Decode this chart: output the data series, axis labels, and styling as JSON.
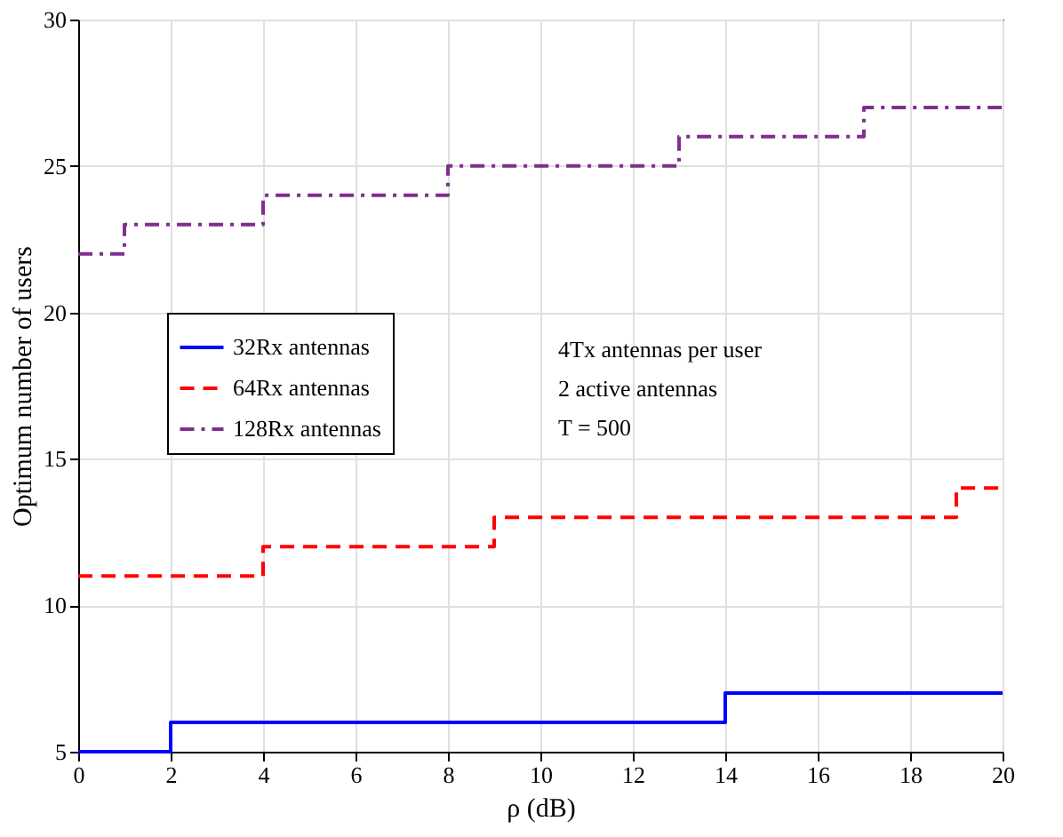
{
  "chart_data": {
    "type": "step",
    "xlabel": "ρ (dB)",
    "ylabel": "Optimum number of users",
    "xlim": [
      0,
      20
    ],
    "ylim": [
      5,
      30
    ],
    "xticks": [
      0,
      2,
      4,
      6,
      8,
      10,
      12,
      14,
      16,
      18,
      20
    ],
    "yticks": [
      5,
      10,
      15,
      20,
      25,
      30
    ],
    "grid": true,
    "legend": "left",
    "series": [
      {
        "name": "32Rx antennas",
        "color": "#0000ff",
        "line_style": "solid",
        "x": [
          0,
          2,
          14,
          20
        ],
        "values": [
          5,
          6,
          7,
          7
        ]
      },
      {
        "name": "64Rx antennas",
        "color": "#ff0000",
        "line_style": "dashed",
        "x": [
          0,
          4,
          9,
          19,
          20
        ],
        "values": [
          11,
          12,
          13,
          14,
          14
        ]
      },
      {
        "name": "128Rx antennas",
        "color": "#7e2f8e",
        "line_style": "dashdot",
        "x": [
          0,
          1,
          4,
          8,
          13,
          17,
          20
        ],
        "values": [
          22,
          23,
          24,
          25,
          26,
          27,
          27
        ]
      }
    ],
    "annotations": [
      "4Tx antennas per user",
      "2 active antennas",
      "T = 500"
    ]
  }
}
